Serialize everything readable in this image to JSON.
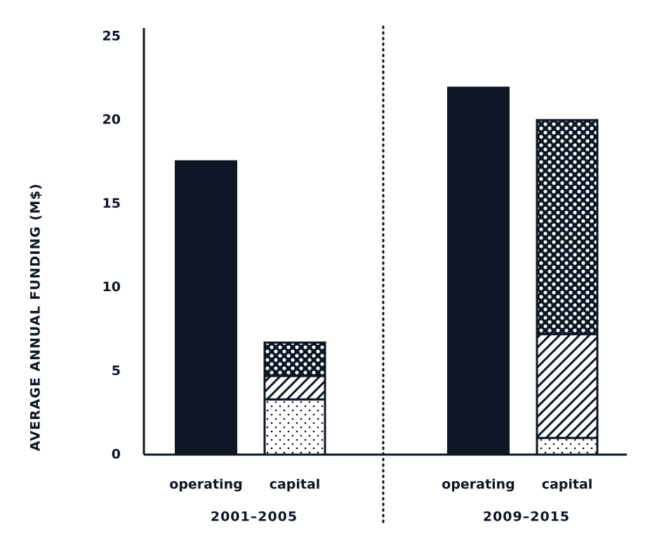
{
  "chart_data": {
    "type": "bar",
    "stacked": true,
    "ylabel": "AVERAGE ANNUAL FUNDING (M$)",
    "ylim": [
      0,
      25
    ],
    "yticks": [
      "0",
      "5",
      "10",
      "15",
      "20",
      "25"
    ],
    "grid": false,
    "groups": [
      {
        "label": "2001–2005",
        "bars": [
          {
            "label": "operating",
            "segments": [
              {
                "value": 17.6,
                "pattern": "solid"
              }
            ]
          },
          {
            "label": "capital",
            "segments": [
              {
                "value": 3.3,
                "pattern": "sparse-dots"
              },
              {
                "value": 1.4,
                "pattern": "diagonal-hatch"
              },
              {
                "value": 2.0,
                "pattern": "dense-dots"
              }
            ]
          }
        ]
      },
      {
        "label": "2009–2015",
        "bars": [
          {
            "label": "operating",
            "segments": [
              {
                "value": 22.0,
                "pattern": "solid"
              }
            ]
          },
          {
            "label": "capital",
            "segments": [
              {
                "value": 1.0,
                "pattern": "sparse-dots"
              },
              {
                "value": 6.2,
                "pattern": "diagonal-hatch"
              },
              {
                "value": 12.8,
                "pattern": "dense-dots"
              }
            ]
          }
        ]
      }
    ],
    "colors": {
      "ink": "#0d1624",
      "background": "#ffffff"
    }
  }
}
